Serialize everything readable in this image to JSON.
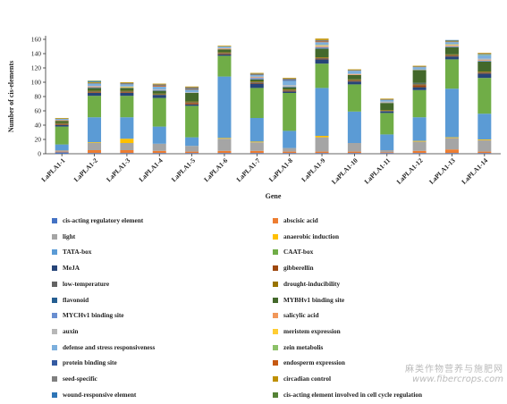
{
  "chart_data": {
    "type": "bar",
    "stacked": true,
    "xlabel": "Gene",
    "ylabel": "Number of cis-elements",
    "ylim": [
      0,
      160
    ],
    "yticks": [
      0,
      20,
      40,
      60,
      80,
      100,
      120,
      140,
      160
    ],
    "grid": false,
    "legend_position": "bottom",
    "categories": [
      "LaPLA1-1",
      "LaPLA1-2",
      "LaPLA1-3",
      "LaPLA1-4",
      "LaPLA1-5",
      "LaPLA1-6",
      "LaPLA1-7",
      "LaPLA1-8",
      "LaPLA1-9",
      "LaPLA1-10",
      "LaPLA1-11",
      "LaPLA1-12",
      "LaPLA1-13",
      "LaPLA1-14"
    ],
    "series": [
      {
        "name": "cis-acting regulatory element",
        "color": "#4472c4",
        "values": [
          2,
          1,
          1,
          1,
          1,
          1,
          1,
          1,
          1,
          1,
          1,
          1,
          1,
          1
        ]
      },
      {
        "name": "abscisic acid",
        "color": "#ed7d31",
        "values": [
          1,
          4,
          4,
          3,
          2,
          3,
          3,
          2,
          2,
          2,
          1,
          3,
          5,
          2
        ]
      },
      {
        "name": "light",
        "color": "#a5a5a5",
        "values": [
          2,
          10,
          10,
          10,
          8,
          17,
          12,
          5,
          20,
          12,
          3,
          13,
          16,
          16
        ]
      },
      {
        "name": "anaerobic induction",
        "color": "#ffc000",
        "values": [
          0,
          1,
          6,
          0,
          0,
          1,
          1,
          0,
          2,
          0,
          0,
          1,
          1,
          1
        ]
      },
      {
        "name": "TATA-box",
        "color": "#5b9bd5",
        "values": [
          8,
          35,
          30,
          24,
          12,
          86,
          33,
          24,
          67,
          44,
          22,
          33,
          68,
          36
        ]
      },
      {
        "name": "CAAT-box",
        "color": "#70ad47",
        "values": [
          25,
          30,
          30,
          40,
          44,
          29,
          42,
          53,
          34,
          38,
          30,
          38,
          41,
          50
        ]
      },
      {
        "name": "MeJA",
        "color": "#264478",
        "values": [
          2,
          4,
          4,
          4,
          2,
          2,
          6,
          2,
          6,
          4,
          2,
          4,
          4,
          6
        ]
      },
      {
        "name": "gibberellin",
        "color": "#9e480e",
        "values": [
          1,
          1,
          1,
          0,
          2,
          1,
          1,
          1,
          1,
          1,
          0,
          3,
          1,
          1
        ]
      },
      {
        "name": "low-temperature",
        "color": "#636363",
        "values": [
          1,
          1,
          1,
          1,
          1,
          1,
          1,
          1,
          1,
          1,
          1,
          1,
          1,
          1
        ]
      },
      {
        "name": "drought-inducibility",
        "color": "#997300",
        "values": [
          1,
          1,
          1,
          1,
          1,
          1,
          1,
          1,
          1,
          1,
          1,
          1,
          1,
          1
        ]
      },
      {
        "name": "flavonoid",
        "color": "#255e91",
        "values": [
          0,
          0,
          0,
          0,
          0,
          0,
          0,
          0,
          0,
          0,
          0,
          1,
          0,
          0
        ]
      },
      {
        "name": "MYBHv1 binding site",
        "color": "#43682b",
        "values": [
          3,
          4,
          4,
          4,
          12,
          4,
          3,
          3,
          12,
          6,
          10,
          18,
          10,
          14
        ]
      },
      {
        "name": "MYCHv1 binding site",
        "color": "#698ed0",
        "values": [
          0,
          1,
          0,
          1,
          0,
          0,
          2,
          1,
          2,
          0,
          0,
          0,
          1,
          1
        ]
      },
      {
        "name": "salicylic acid",
        "color": "#f1975a",
        "values": [
          1,
          1,
          0,
          0,
          0,
          1,
          1,
          0,
          1,
          1,
          0,
          0,
          1,
          1
        ]
      },
      {
        "name": "auxin",
        "color": "#b7b7b7",
        "values": [
          0,
          1,
          1,
          1,
          1,
          1,
          1,
          2,
          1,
          1,
          2,
          1,
          1,
          2
        ]
      },
      {
        "name": "meristem expression",
        "color": "#ffcd33",
        "values": [
          0,
          0,
          1,
          0,
          0,
          0,
          0,
          0,
          1,
          0,
          0,
          0,
          1,
          0
        ]
      },
      {
        "name": "defense and stress responsiveness",
        "color": "#7cafdd",
        "values": [
          2,
          3,
          3,
          4,
          3,
          2,
          2,
          6,
          4,
          4,
          2,
          3,
          3,
          5
        ]
      },
      {
        "name": "zein metabolis",
        "color": "#8cc168",
        "values": [
          0,
          0,
          0,
          0,
          0,
          0,
          0,
          0,
          0,
          0,
          0,
          0,
          0,
          1
        ]
      },
      {
        "name": "protein binding site",
        "color": "#335aa1",
        "values": [
          0,
          0,
          0,
          0,
          0,
          0,
          0,
          1,
          0,
          0,
          0,
          0,
          0,
          0
        ]
      },
      {
        "name": "endosperm expression",
        "color": "#c65911",
        "values": [
          0,
          0,
          0,
          1,
          0,
          0,
          0,
          0,
          1,
          0,
          0,
          0,
          0,
          0
        ]
      },
      {
        "name": "seed-specific",
        "color": "#7f7f7f",
        "values": [
          0,
          1,
          2,
          2,
          4,
          0,
          2,
          2,
          2,
          1,
          1,
          1,
          1,
          1
        ]
      },
      {
        "name": "circadian control",
        "color": "#bf9000",
        "values": [
          1,
          1,
          1,
          1,
          1,
          1,
          1,
          1,
          2,
          1,
          1,
          1,
          1,
          1
        ]
      },
      {
        "name": "wound-responsive element",
        "color": "#2e75b6",
        "values": [
          0,
          1,
          0,
          0,
          0,
          0,
          0,
          0,
          0,
          0,
          0,
          0,
          1,
          0
        ]
      },
      {
        "name": "cis-acting element involved in cell cycle regulation",
        "color": "#548235",
        "values": [
          0,
          1,
          0,
          0,
          0,
          0,
          0,
          0,
          0,
          0,
          0,
          0,
          0,
          0
        ]
      }
    ]
  },
  "watermark": {
    "line1": "麻类作物营养与施肥网",
    "line2": "www.fibercrops.com"
  }
}
